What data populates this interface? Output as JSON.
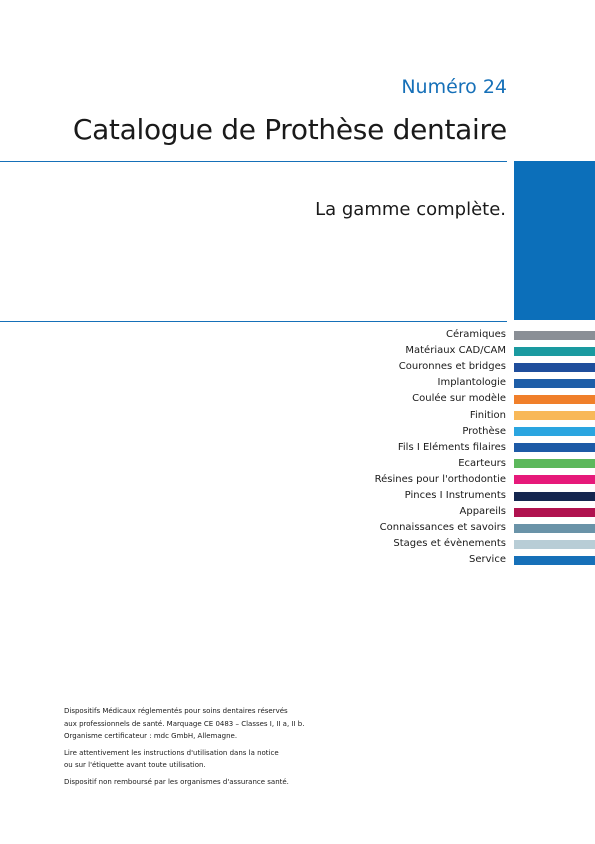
{
  "header": {
    "issue": "Numéro 24",
    "title": "Catalogue de Prothèse dentaire",
    "subtitle": "La gamme complète."
  },
  "sections": [
    {
      "label": "Céramiques",
      "color": "#8a8f96"
    },
    {
      "label": "Matériaux CAD/CAM",
      "color": "#1a9aa0"
    },
    {
      "label": "Couronnes et bridges",
      "color": "#1f4e9c"
    },
    {
      "label": "Implantologie",
      "color": "#1e5ea8"
    },
    {
      "label": "Coulée sur modèle",
      "color": "#f07f2a"
    },
    {
      "label": "Finition",
      "color": "#f8b858"
    },
    {
      "label": "Prothèse",
      "color": "#2aa5e0"
    },
    {
      "label": "Fils  I  Eléments filaires",
      "color": "#1d5aa6"
    },
    {
      "label": "Ecarteurs",
      "color": "#5cb85c"
    },
    {
      "label": "Résines pour l'orthodontie",
      "color": "#e6197a"
    },
    {
      "label": "Pinces  I  Instruments",
      "color": "#14264f"
    },
    {
      "label": "Appareils",
      "color": "#b0124f"
    },
    {
      "label": "Connaissances et savoirs",
      "color": "#6a93a8"
    },
    {
      "label": "Stages et évènements",
      "color": "#b8cdd6"
    },
    {
      "label": "Service",
      "color": "#1670b8"
    }
  ],
  "footer": [
    [
      "Dispositifs Médicaux réglementés pour soins dentaires réservés",
      "aux professionnels de santé. Marquage CE 0483 – Classes I, II a, II b.",
      "Organisme certificateur : mdc GmbH, Allemagne."
    ],
    [
      "Lire attentivement les instructions d'utilisation dans la notice",
      "ou sur l'étiquette avant toute utilisation."
    ],
    [
      "Dispositif non remboursé par les organismes d'assurance santé."
    ]
  ]
}
